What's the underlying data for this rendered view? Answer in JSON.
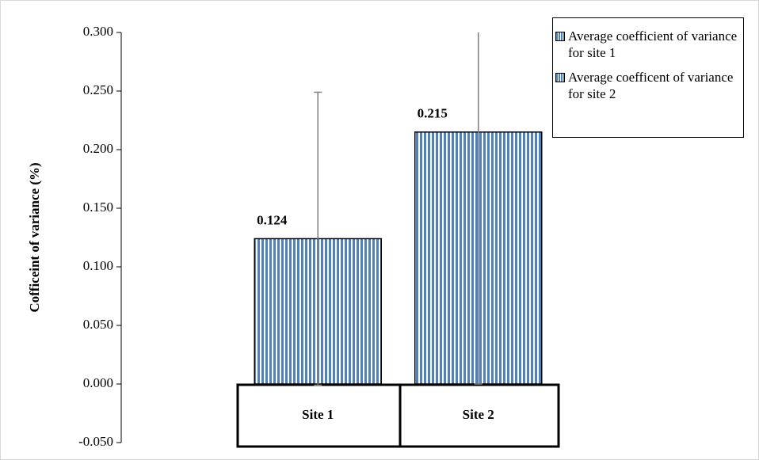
{
  "chart_data": {
    "type": "bar",
    "y_label": "Cofficeint of variance (%)",
    "categories": [
      "Site 1",
      "Site 2"
    ],
    "series": [
      {
        "name": "Average coefficient of variance for site 1",
        "color": "#4f81bd",
        "values": [
          0.124,
          null
        ],
        "errors": [
          0.125,
          null
        ]
      },
      {
        "name": "Average coefficent of variance for site 2",
        "color": "#4f81bd",
        "values": [
          null,
          0.215
        ],
        "errors": [
          null,
          0.215
        ]
      }
    ],
    "ylim": [
      -0.05,
      0.3
    ],
    "yticks": [
      {
        "value": -0.05,
        "label": "-0.050"
      },
      {
        "value": 0,
        "label": "0.000"
      },
      {
        "value": 0.05,
        "label": "0.050"
      },
      {
        "value": 0.1,
        "label": "0.100"
      },
      {
        "value": 0.15,
        "label": "0.150"
      },
      {
        "value": 0.2,
        "label": "0.200"
      },
      {
        "value": 0.25,
        "label": "0.250"
      },
      {
        "value": 0.3,
        "label": "0.300"
      }
    ],
    "grid": false
  }
}
